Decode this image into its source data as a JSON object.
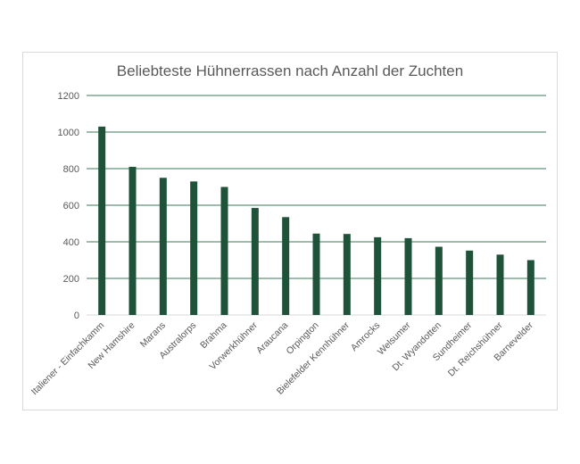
{
  "chart_data": {
    "type": "bar",
    "title": "Beliebteste Hühnerrassen nach Anzahl der Zuchten",
    "xlabel": "",
    "ylabel": "",
    "categories": [
      "Italiener - Einfachkamm",
      "New Hamshire",
      "Marans",
      "Australorps",
      "Brahma",
      "Vorwerkhühner",
      "Araucana",
      "Orpington",
      "Bielefelder Kennhühner",
      "Amrocks",
      "Welsumer",
      "Dt. Wyandotten",
      "Sundheimer",
      "Dt. Reichshühner",
      "Barnevelder"
    ],
    "values": [
      1030,
      810,
      750,
      730,
      700,
      585,
      535,
      445,
      443,
      425,
      420,
      373,
      352,
      330,
      300
    ],
    "ylim": [
      0,
      1200
    ],
    "yticks": [
      0,
      200,
      400,
      600,
      800,
      1000,
      1200
    ],
    "grid": true,
    "legend": "none",
    "colors": {
      "bar": "#1e5239",
      "grid": "#3d7a5a",
      "text": "#595959"
    }
  }
}
